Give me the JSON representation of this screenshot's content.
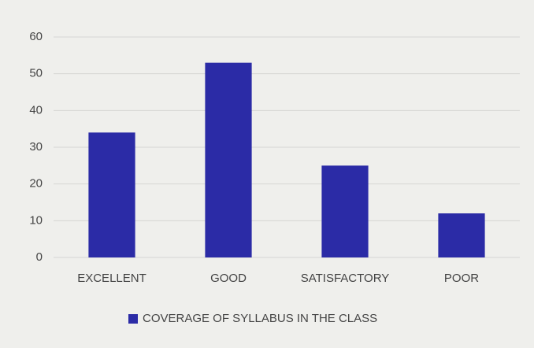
{
  "chart_data": {
    "type": "bar",
    "categories": [
      "EXCELLENT",
      "GOOD",
      "SATISFACTORY",
      "POOR"
    ],
    "series": [
      {
        "name": "COVERAGE OF SYLLABUS IN THE CLASS",
        "color": "#2b2ba6",
        "values": [
          34,
          53,
          25,
          12
        ]
      }
    ],
    "ylim": [
      0,
      60
    ],
    "yticks": [
      0,
      10,
      20,
      30,
      40,
      50,
      60
    ],
    "grid": true,
    "legend": "bottom"
  }
}
